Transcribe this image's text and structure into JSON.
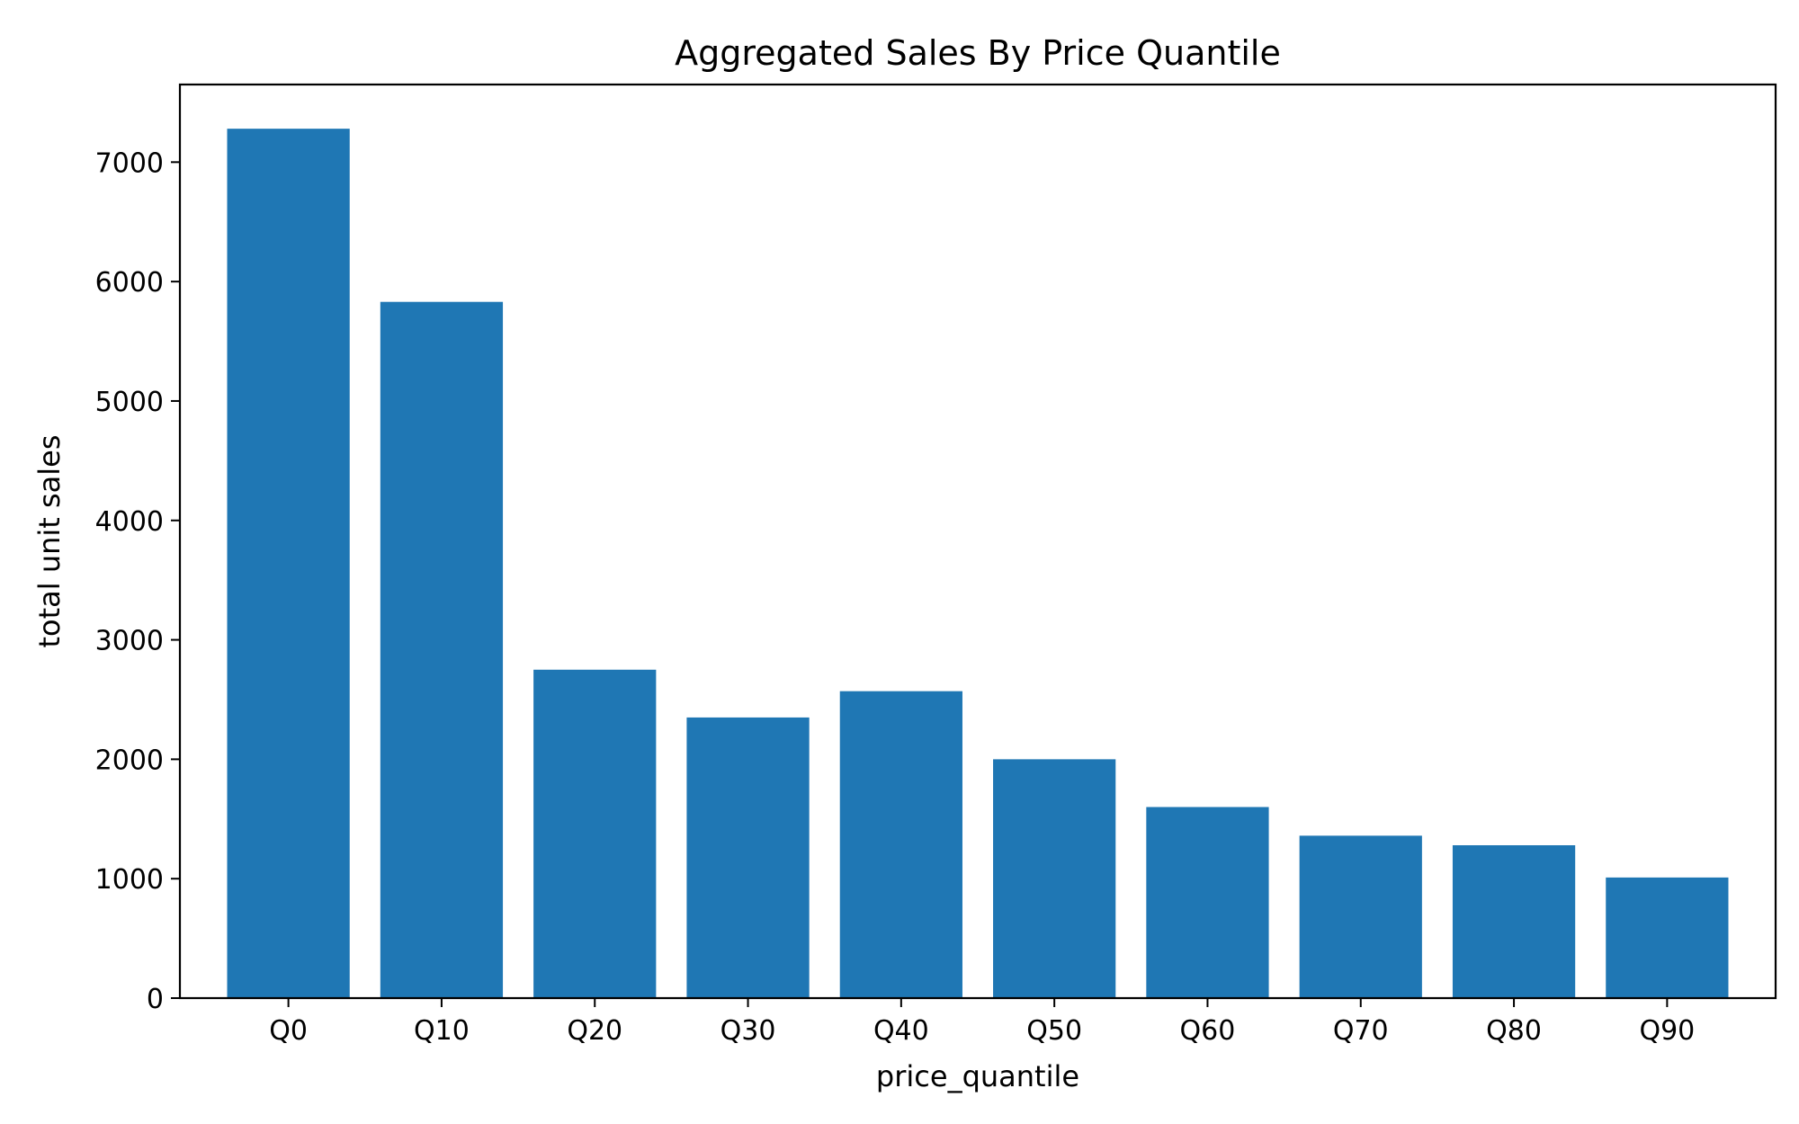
{
  "chart_data": {
    "type": "bar",
    "title": "Aggregated Sales By Price Quantile",
    "xlabel": "price_quantile",
    "ylabel": "total unit sales",
    "categories": [
      "Q0",
      "Q10",
      "Q20",
      "Q30",
      "Q40",
      "Q50",
      "Q60",
      "Q70",
      "Q80",
      "Q90"
    ],
    "values": [
      7280,
      5830,
      2750,
      2350,
      2570,
      2000,
      1600,
      1360,
      1280,
      1010
    ],
    "ylim": [
      0,
      7650
    ],
    "yticks": [
      0,
      1000,
      2000,
      3000,
      4000,
      5000,
      6000,
      7000
    ],
    "bar_color": "#1f77b4",
    "grid": false,
    "legend": "none"
  }
}
